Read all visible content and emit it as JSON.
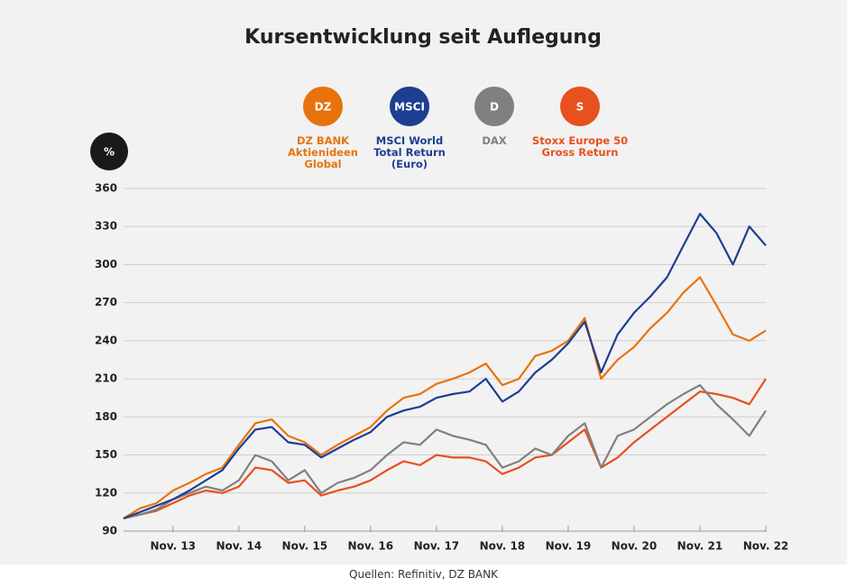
{
  "chart_data": {
    "type": "line",
    "title": "Kursentwicklung seit Auflegung",
    "y_unit": "%",
    "source": "Quellen: Refinitiv, DZ BANK",
    "categories": [
      null,
      null,
      null,
      "Nov. 13",
      null,
      null,
      null,
      "Nov. 14",
      null,
      null,
      null,
      "Nov. 15",
      null,
      null,
      null,
      "Nov. 16",
      null,
      null,
      null,
      "Nov. 17",
      null,
      null,
      null,
      "Nov. 18",
      null,
      null,
      null,
      "Nov. 19",
      null,
      null,
      null,
      "Nov. 20",
      null,
      null,
      null,
      "Nov. 21",
      null,
      null,
      null,
      "Nov. 22"
    ],
    "series": [
      {
        "name": "DZ BANK Aktienideen Global",
        "badge": "DZ",
        "color": "#e8730c",
        "values": [
          100,
          108,
          112,
          122,
          128,
          135,
          140,
          158,
          175,
          178,
          165,
          160,
          150,
          158,
          165,
          172,
          185,
          195,
          198,
          206,
          210,
          215,
          222,
          205,
          210,
          228,
          232,
          240,
          258,
          210,
          225,
          235,
          250,
          262,
          278,
          290,
          268,
          245,
          240,
          248
        ]
      },
      {
        "name": "MSCI World Total Return (Euro)",
        "badge": "MSCI",
        "color": "#1d3f91",
        "values": [
          100,
          105,
          110,
          115,
          122,
          130,
          138,
          155,
          170,
          172,
          160,
          158,
          148,
          155,
          162,
          168,
          180,
          185,
          188,
          195,
          198,
          200,
          210,
          192,
          200,
          215,
          225,
          238,
          255,
          215,
          245,
          262,
          275,
          290,
          315,
          340,
          325,
          300,
          330,
          315
        ]
      },
      {
        "name": "DAX",
        "badge": "D",
        "color": "#808080",
        "values": [
          100,
          103,
          107,
          115,
          120,
          125,
          122,
          130,
          150,
          145,
          130,
          138,
          120,
          128,
          132,
          138,
          150,
          160,
          158,
          170,
          165,
          162,
          158,
          140,
          145,
          155,
          150,
          165,
          175,
          140,
          165,
          170,
          180,
          190,
          198,
          205,
          190,
          178,
          165,
          185
        ]
      },
      {
        "name": "Stoxx Europe 50 Gross Return",
        "badge": "S",
        "color": "#e8501e",
        "values": [
          100,
          103,
          106,
          112,
          118,
          122,
          120,
          125,
          140,
          138,
          128,
          130,
          118,
          122,
          125,
          130,
          138,
          145,
          142,
          150,
          148,
          148,
          145,
          135,
          140,
          148,
          150,
          160,
          170,
          140,
          148,
          160,
          170,
          180,
          190,
          200,
          198,
          195,
          190,
          210
        ]
      }
    ],
    "ylim": [
      90,
      360
    ],
    "yticks": [
      90,
      120,
      150,
      180,
      210,
      240,
      270,
      300,
      330,
      360
    ],
    "grid": true
  }
}
